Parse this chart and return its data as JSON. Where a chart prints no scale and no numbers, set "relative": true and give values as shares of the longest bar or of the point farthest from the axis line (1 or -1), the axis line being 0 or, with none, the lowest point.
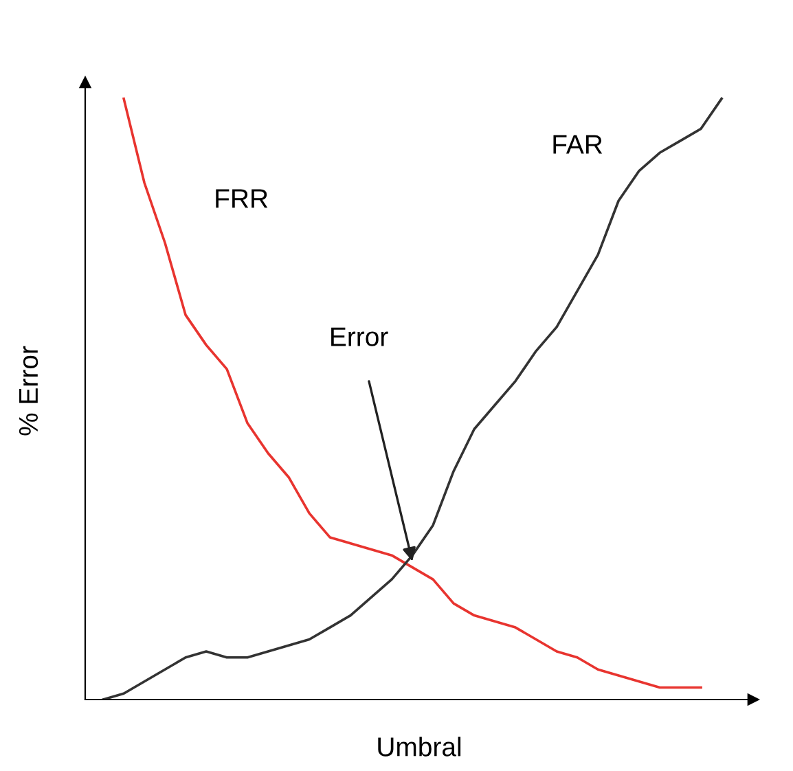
{
  "chart_data": {
    "type": "line",
    "relative": true,
    "xlabel": "Umbral",
    "ylabel": "% Error",
    "categories": [
      null,
      null,
      null,
      null,
      null,
      null,
      null,
      null,
      null,
      null,
      null,
      null,
      null,
      null,
      null,
      null,
      null,
      null,
      null,
      null,
      null,
      null,
      null,
      null,
      null,
      null,
      null,
      null,
      null,
      null,
      null
    ],
    "series": [
      {
        "name": "FRR",
        "color": "#e8342f",
        "values": [
          null,
          1.0,
          0.86,
          0.76,
          0.64,
          0.59,
          0.55,
          0.46,
          0.41,
          0.37,
          0.31,
          0.27,
          0.26,
          0.25,
          0.24,
          0.22,
          0.2,
          0.16,
          0.14,
          0.13,
          0.12,
          0.1,
          0.08,
          0.07,
          0.05,
          0.04,
          0.03,
          0.02,
          0.02,
          0.02,
          null
        ]
      },
      {
        "name": "FAR",
        "color": "#333333",
        "values": [
          0.0,
          0.01,
          0.03,
          0.05,
          0.07,
          0.08,
          0.07,
          0.07,
          0.08,
          0.09,
          0.1,
          0.12,
          0.14,
          0.17,
          0.2,
          0.24,
          0.29,
          0.38,
          0.45,
          0.49,
          0.53,
          0.58,
          0.62,
          0.68,
          0.74,
          0.83,
          0.88,
          0.91,
          0.93,
          0.95,
          1.0
        ]
      }
    ],
    "annotations": [
      "Error"
    ],
    "marker": "none",
    "line_style": "solid",
    "grid": false,
    "legend": false
  }
}
